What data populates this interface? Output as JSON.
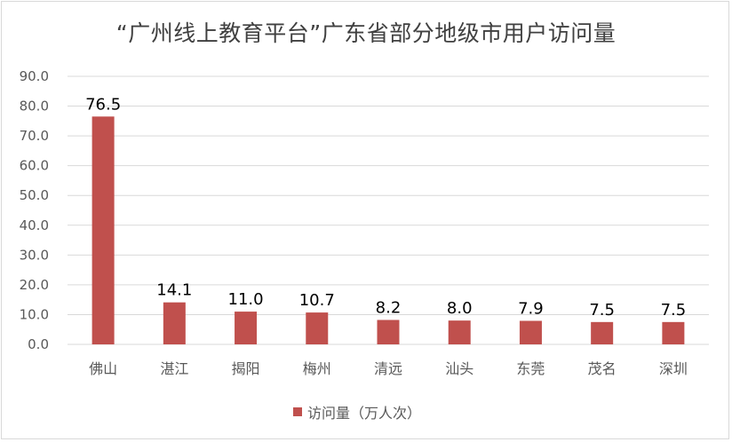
{
  "colors": {
    "bar": "#c0504d",
    "grid": "#d9d9d9",
    "text": "#595959",
    "title": "#404040"
  },
  "chart_data": {
    "type": "bar",
    "title": "“广州线上教育平台”广东省部分地级市用户访问量",
    "categories": [
      "佛山",
      "湛江",
      "揭阳",
      "梅州",
      "清远",
      "汕头",
      "东莞",
      "茂名",
      "深圳"
    ],
    "series": [
      {
        "name": "访问量（万人次）",
        "values": [
          76.5,
          14.1,
          11.0,
          10.7,
          8.2,
          8.0,
          7.9,
          7.5,
          7.5
        ]
      }
    ],
    "data_labels": [
      "76.5",
      "14.1",
      "11.0",
      "10.7",
      "8.2",
      "8.0",
      "7.9",
      "7.5",
      "7.5"
    ],
    "yticks": [
      "0.0",
      "10.0",
      "20.0",
      "30.0",
      "40.0",
      "50.0",
      "60.0",
      "70.0",
      "80.0",
      "90.0"
    ],
    "ylim": [
      0,
      90
    ],
    "grid": true,
    "legend": "bottom"
  }
}
